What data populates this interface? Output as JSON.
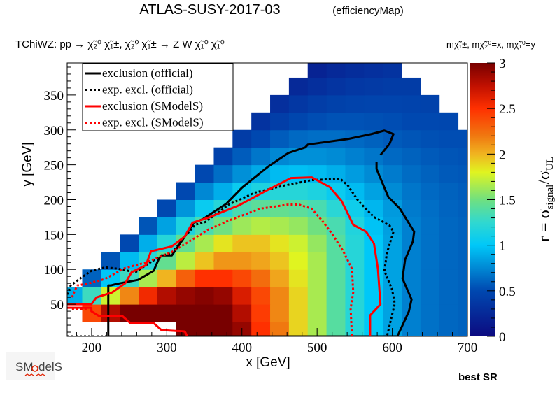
{
  "title": "ATLAS-SUSY-2017-03",
  "subtitle": "(efficiencyMap)",
  "process": "TChiWZ: pp  → χ̃₂⁰ χ̃₁±, χ̃₂⁰ χ̃₁± → Z W  χ̃₁⁰ χ̃₁⁰",
  "mass_assignment": "mχ̃₁±, mχ̃₂⁰=x, mχ̃₁⁰=y",
  "footer": {
    "logo_text": "SModelS",
    "best_sr": "best SR"
  },
  "chart_data": {
    "type": "heatmap",
    "xlabel": "x [GeV]",
    "ylabel": "y [GeV]",
    "zlabel": "r = σsignal/σUL",
    "zlabel_parts": {
      "main": "r = σ",
      "sub1": "signal",
      "slash": "/σ",
      "sub2": "UL"
    },
    "xlim": [
      167.5,
      700
    ],
    "ylim": [
      4,
      396
    ],
    "zlim": [
      0,
      3
    ],
    "xticks": [
      "200",
      "300",
      "400",
      "500",
      "600",
      "700"
    ],
    "yticks": [
      "50",
      "100",
      "150",
      "200",
      "250",
      "300",
      "350"
    ],
    "zticks": [
      "0",
      "0.5",
      "1",
      "1.5",
      "2",
      "2.5",
      "3"
    ],
    "colormap": [
      [
        0.0,
        "#0c0a80"
      ],
      [
        0.5,
        "#0048b0"
      ],
      [
        1.0,
        "#00c8f8"
      ],
      [
        1.25,
        "#30d8d0"
      ],
      [
        1.5,
        "#70e080"
      ],
      [
        1.8,
        "#e0f420"
      ],
      [
        2.0,
        "#f0b420"
      ],
      [
        2.2,
        "#f07810"
      ],
      [
        2.5,
        "#ff3000"
      ],
      [
        2.75,
        "#c01000"
      ],
      [
        3.0,
        "#780000"
      ]
    ],
    "x": [
      175,
      200,
      225,
      250,
      275,
      300,
      325,
      350,
      375,
      400,
      425,
      450,
      475,
      500,
      525,
      550,
      575,
      600,
      625,
      650,
      675,
      700
    ],
    "y": [
      12.5,
      37.5,
      62.5,
      87.5,
      112.5,
      137.5,
      162.5,
      187.5,
      212.5,
      237.5,
      262.5,
      287.5,
      312.5,
      337.5,
      362.5,
      387.5
    ],
    "z": [
      [
        null,
        null,
        null,
        null,
        null,
        null,
        3.0,
        3.0,
        3.0,
        2.9,
        2.5,
        2.2,
        1.9,
        1.65,
        1.4,
        1.2,
        1.0,
        0.85,
        0.72,
        0.66,
        0.62,
        0.6
      ],
      [
        null,
        2.4,
        2.8,
        3.0,
        3.0,
        3.0,
        3.0,
        3.0,
        3.0,
        2.8,
        2.45,
        2.15,
        1.9,
        1.65,
        1.4,
        1.2,
        1.0,
        0.85,
        0.72,
        0.66,
        0.62,
        0.6
      ],
      [
        0.9,
        1.3,
        1.75,
        2.15,
        2.55,
        2.8,
        2.9,
        2.95,
        2.9,
        2.65,
        2.4,
        2.15,
        1.9,
        1.65,
        1.4,
        1.2,
        1.0,
        0.85,
        0.72,
        0.66,
        0.62,
        0.6
      ],
      [
        null,
        0.6,
        1.0,
        1.3,
        1.65,
        2.0,
        2.3,
        2.5,
        2.5,
        2.4,
        2.25,
        2.05,
        1.85,
        1.65,
        1.4,
        1.2,
        1.0,
        0.85,
        0.72,
        0.66,
        0.62,
        0.6
      ],
      [
        null,
        null,
        0.55,
        0.95,
        1.2,
        1.45,
        1.7,
        1.95,
        2.1,
        2.1,
        2.05,
        1.95,
        1.8,
        1.65,
        1.4,
        1.2,
        1.0,
        0.85,
        0.72,
        0.66,
        0.62,
        0.6
      ],
      [
        null,
        null,
        null,
        0.5,
        0.9,
        1.2,
        1.45,
        1.65,
        1.85,
        1.95,
        1.95,
        1.85,
        1.75,
        1.6,
        1.4,
        1.2,
        1.0,
        0.85,
        0.72,
        0.66,
        0.62,
        0.6
      ],
      [
        null,
        null,
        null,
        null,
        0.55,
        0.85,
        1.15,
        1.35,
        1.5,
        1.62,
        1.68,
        1.65,
        1.6,
        1.5,
        1.35,
        1.17,
        0.98,
        0.84,
        0.72,
        0.66,
        0.62,
        0.6
      ],
      [
        null,
        null,
        null,
        null,
        null,
        0.5,
        0.8,
        1.05,
        1.2,
        1.35,
        1.42,
        1.45,
        1.42,
        1.35,
        1.22,
        1.08,
        0.93,
        0.82,
        0.7,
        0.65,
        0.61,
        0.59
      ],
      [
        null,
        null,
        null,
        null,
        null,
        null,
        0.5,
        0.75,
        0.9,
        1.05,
        1.15,
        1.2,
        1.2,
        1.15,
        1.05,
        0.95,
        0.85,
        0.76,
        0.68,
        0.63,
        0.6,
        0.58
      ],
      [
        null,
        null,
        null,
        null,
        null,
        null,
        null,
        0.5,
        0.65,
        0.78,
        0.88,
        0.95,
        0.97,
        0.95,
        0.9,
        0.83,
        0.76,
        0.7,
        0.64,
        0.6,
        0.57,
        0.56
      ],
      [
        null,
        null,
        null,
        null,
        null,
        null,
        null,
        null,
        0.45,
        0.58,
        0.68,
        0.75,
        0.78,
        0.78,
        0.76,
        0.72,
        0.68,
        0.63,
        0.6,
        0.57,
        0.55,
        0.54
      ],
      [
        null,
        null,
        null,
        null,
        null,
        null,
        null,
        null,
        null,
        0.4,
        0.5,
        0.58,
        0.63,
        0.65,
        0.65,
        0.63,
        0.6,
        0.57,
        0.55,
        0.53,
        0.52,
        0.52
      ],
      [
        null,
        null,
        null,
        null,
        null,
        null,
        null,
        null,
        null,
        null,
        0.33,
        0.42,
        0.48,
        0.52,
        0.54,
        0.54,
        0.53,
        0.52,
        0.5,
        0.5,
        0.49,
        null
      ],
      [
        null,
        null,
        null,
        null,
        null,
        null,
        null,
        null,
        null,
        null,
        null,
        0.3,
        0.36,
        0.41,
        0.44,
        0.46,
        0.47,
        0.47,
        0.46,
        0.45,
        null,
        null
      ],
      [
        null,
        null,
        null,
        null,
        null,
        null,
        null,
        null,
        null,
        null,
        null,
        null,
        0.25,
        0.3,
        0.34,
        0.37,
        0.39,
        0.4,
        0.4,
        null,
        null,
        null
      ],
      [
        null,
        null,
        null,
        null,
        null,
        null,
        null,
        null,
        null,
        null,
        null,
        null,
        null,
        0.2,
        0.25,
        0.28,
        0.31,
        0.33,
        null,
        null,
        null,
        null
      ]
    ],
    "legend_position": "top-left",
    "contours": [
      {
        "name": "exclusion (official)",
        "color": "#000000",
        "style": "solid",
        "segments": [
          [
            [
              606.8,
              4
            ],
            [
              222.2,
              4
            ],
            [
              222.2,
              77
            ],
            [
              225.6,
              77
            ],
            [
              232.5,
              79
            ],
            [
              261.8,
              85
            ],
            [
              282.5,
              98
            ],
            [
              289.4,
              115
            ],
            [
              292.9,
              120
            ],
            [
              306.7,
              120
            ],
            [
              323.9,
              147
            ],
            [
              336,
              167
            ],
            [
              348,
              172
            ],
            [
              379,
              194
            ],
            [
              399.8,
              217
            ],
            [
              434.3,
              247
            ],
            [
              461.9,
              267
            ],
            [
              484.3,
              275
            ],
            [
              487.7,
              279
            ],
            [
              541.2,
              287
            ],
            [
              572.2,
              294
            ],
            [
              589.5,
              299
            ],
            [
              601.6,
              294
            ],
            [
              596.4,
              280
            ],
            [
              584.3,
              264
            ]
          ],
          [
            [
              579.1,
              254
            ],
            [
              579.1,
              244
            ],
            [
              594.7,
              204
            ],
            [
              610.2,
              187
            ],
            [
              629.1,
              154
            ],
            [
              627.4,
              140
            ],
            [
              617.1,
              114
            ],
            [
              613.6,
              87
            ],
            [
              625.7,
              57
            ],
            [
              622.2,
              40
            ],
            [
              606.8,
              4
            ]
          ]
        ]
      },
      {
        "name": "exp. excl. (official)",
        "color": "#000000",
        "style": "dotted",
        "segments": [
          [
            [
              167.5,
              4
            ],
            [
              222,
              4
            ]
          ],
          [
            [
              167.5,
              64
            ],
            [
              172.2,
              77
            ],
            [
              186,
              88
            ],
            [
              199.7,
              98
            ],
            [
              218.7,
              103
            ],
            [
              234.2,
              101
            ],
            [
              258.4,
              96
            ],
            [
              272.2,
              106
            ],
            [
              292.9,
              120
            ],
            [
              306.7,
              123
            ],
            [
              323.9,
              147
            ],
            [
              337.7,
              164
            ],
            [
              351.5,
              168
            ],
            [
              382.5,
              193
            ],
            [
              417,
              210
            ],
            [
              455,
              220
            ],
            [
              492.9,
              228
            ],
            [
              530.8,
              230
            ],
            [
              541.2,
              220
            ],
            [
              555,
              198
            ],
            [
              575.7,
              175
            ],
            [
              596.4,
              163
            ],
            [
              601.6,
              154
            ],
            [
              593,
              124
            ],
            [
              589.5,
              98
            ],
            [
              599.8,
              71
            ],
            [
              603.3,
              51
            ],
            [
              593,
              4
            ]
          ]
        ]
      },
      {
        "name": "exclusion (SModelS)",
        "color": "#ff0000",
        "style": "solid",
        "segments": [
          [
            [
              167.5,
              50
            ],
            [
              199.7,
              50
            ],
            [
              206.6,
              60
            ],
            [
              227.3,
              67
            ],
            [
              244.6,
              80
            ],
            [
              253.2,
              96
            ],
            [
              272.2,
              106
            ],
            [
              279,
              126
            ],
            [
              306.7,
              133
            ],
            [
              323.9,
              147
            ],
            [
              334.3,
              167
            ],
            [
              355,
              174
            ],
            [
              396.3,
              192
            ],
            [
              434.3,
              214
            ],
            [
              465.3,
              231
            ],
            [
              492.9,
              232
            ],
            [
              517,
              218
            ],
            [
              532.6,
              198
            ],
            [
              548.1,
              164
            ],
            [
              565.3,
              154
            ],
            [
              575.7,
              137
            ],
            [
              580.9,
              101
            ],
            [
              584.3,
              50
            ],
            [
              570.5,
              34
            ],
            [
              570.5,
              4
            ]
          ],
          [
            [
              167.5,
              45
            ],
            [
              199.7,
              45
            ],
            [
              199.7,
              40
            ],
            [
              210.1,
              33
            ],
            [
              241.1,
              33
            ],
            [
              251.5,
              23
            ],
            [
              282.5,
              23
            ],
            [
              292.9,
              13
            ],
            [
              323.9,
              11
            ],
            [
              327.4,
              4
            ]
          ]
        ]
      },
      {
        "name": "exp. excl. (SModelS)",
        "color": "#ff0000",
        "style": "dotted",
        "segments": [
          [
            [
              173.9,
              60
            ],
            [
              180.8,
              77
            ],
            [
              196.3,
              80
            ],
            [
              217,
              86
            ],
            [
              244.6,
              102
            ],
            [
              272.2,
              110
            ],
            [
              306.7,
              125
            ],
            [
              334.3,
              143
            ],
            [
              355,
              157
            ],
            [
              382.5,
              170
            ],
            [
              423.9,
              187
            ],
            [
              461.9,
              193
            ],
            [
              475.7,
              193
            ],
            [
              492.9,
              187
            ],
            [
              506.7,
              170
            ],
            [
              520.5,
              150
            ],
            [
              534.3,
              127
            ],
            [
              546.4,
              101
            ],
            [
              548.1,
              67
            ],
            [
              544.6,
              44
            ],
            [
              546.4,
              4
            ]
          ],
          [
            [
              173.9,
              43
            ],
            [
              196.3,
              43
            ]
          ]
        ]
      }
    ]
  }
}
